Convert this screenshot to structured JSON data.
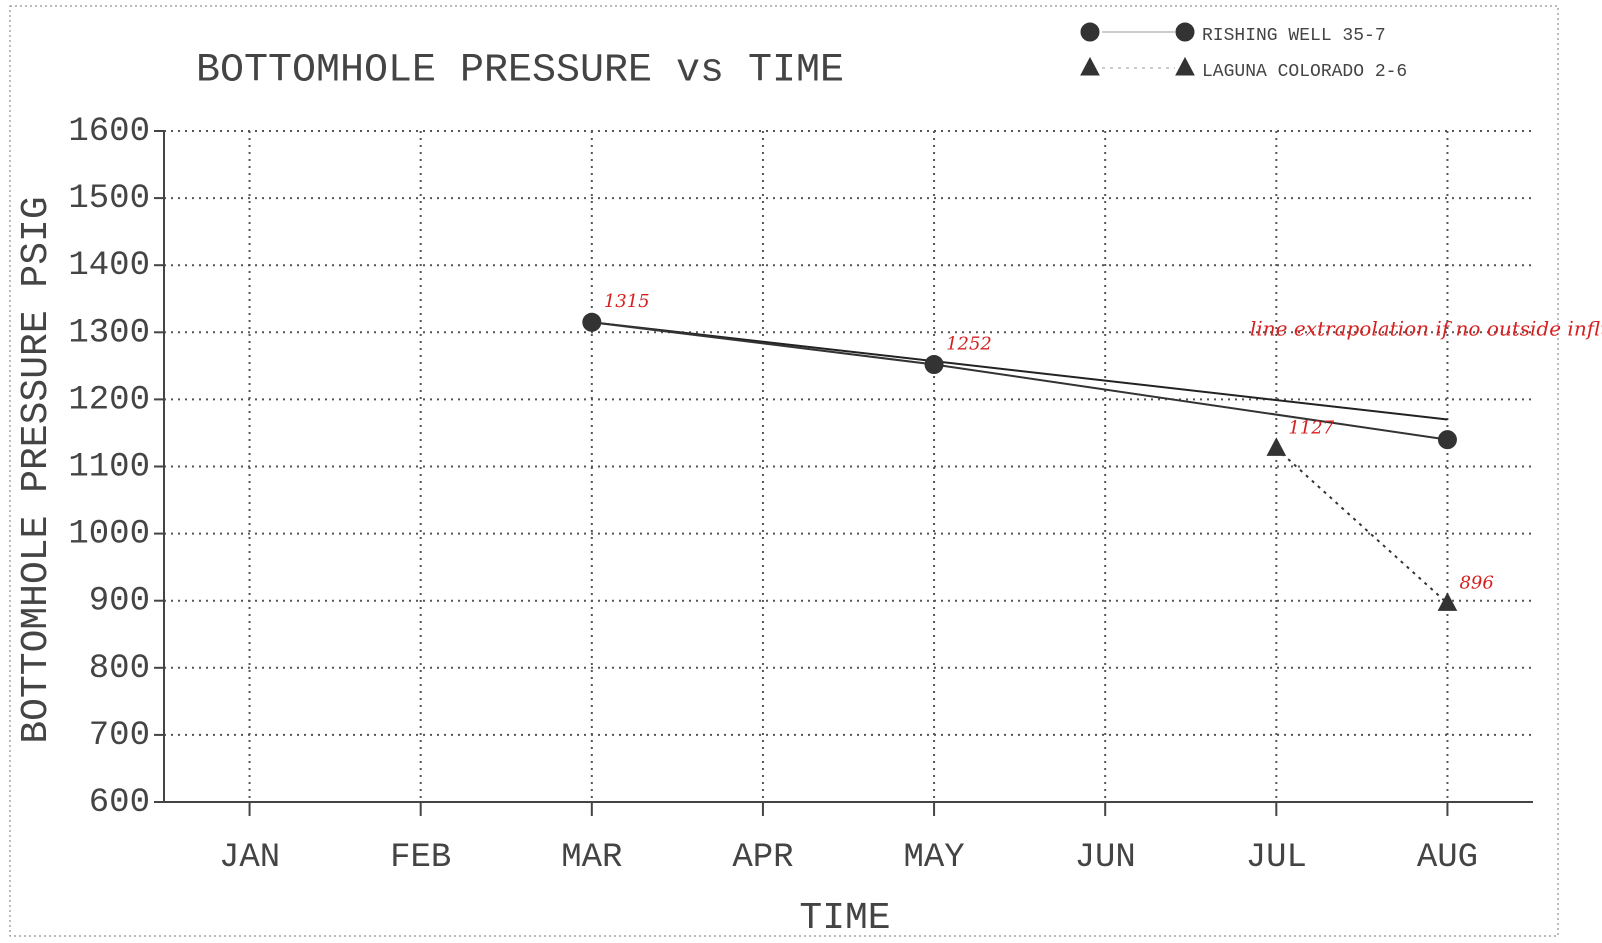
{
  "chart_data": {
    "type": "line",
    "title": "BOTTOMHOLE PRESSURE vs TIME",
    "x_label": "TIME",
    "y_label": "BOTTOMHOLE PRESSURE PSIG",
    "categories": [
      "JAN",
      "FEB",
      "MAR",
      "APR",
      "MAY",
      "JUN",
      "JUL",
      "AUG"
    ],
    "ylim": [
      600,
      1600
    ],
    "yticks": [
      600,
      700,
      800,
      900,
      1000,
      1100,
      1200,
      1300,
      1400,
      1500,
      1600
    ],
    "grid": true,
    "legend": "top-right",
    "series": [
      {
        "name": "RISHING WELL 35-7",
        "color": "#333333",
        "marker": "circle",
        "dash": "solid",
        "x": [
          "MAR",
          "MAY",
          "AUG"
        ],
        "values": [
          1315,
          1252,
          1140
        ],
        "labeled": [
          true,
          true,
          false
        ]
      },
      {
        "name": "LAGUNA COLORADO 2-6",
        "color": "#333333",
        "marker": "triangle",
        "dash": "dotted",
        "x": [
          "JUL",
          "AUG"
        ],
        "values": [
          1127,
          896
        ],
        "labeled": [
          true,
          true
        ]
      }
    ],
    "annotation": {
      "text": "line extrapolation if no outside influence effected pres.",
      "color": "#d42020",
      "line": {
        "x": [
          "MAR",
          "AUG"
        ],
        "values": [
          1315,
          1170
        ]
      }
    }
  }
}
